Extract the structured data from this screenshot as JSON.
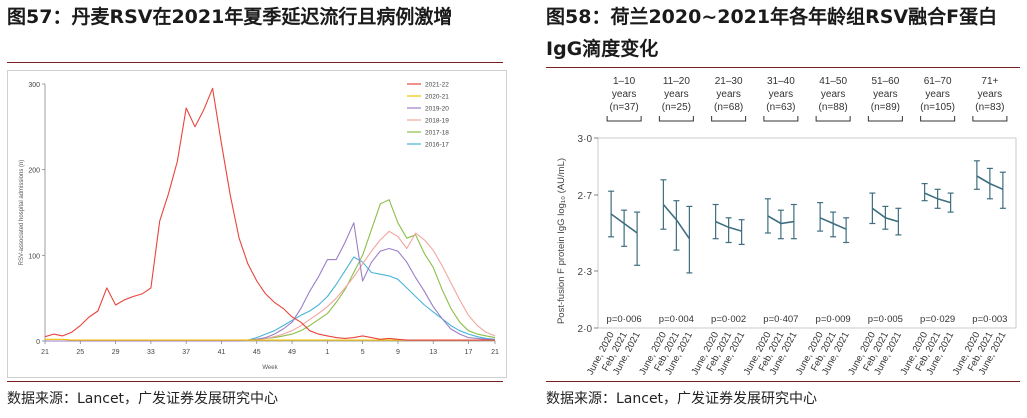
{
  "left_panel": {
    "title": "图57：丹麦RSV在2021年夏季延迟流行且病例激增",
    "source": "数据来源：Lancet，广发证券发展研究中心"
  },
  "right_panel": {
    "title_line1": "图58：荷兰2020~2021年各年龄组RSV融合F蛋白",
    "title_line2": "IgG滴度变化",
    "source": "数据来源：Lancet，广发证券发展研究中心"
  },
  "chart_data": [
    {
      "type": "line",
      "ylabel": "RSV-associated hospital admissions (n)",
      "xlabel": "Week",
      "x_ticks": [
        "21",
        "25",
        "29",
        "33",
        "37",
        "41",
        "45",
        "49",
        "1",
        "5",
        "9",
        "13",
        "17",
        "21"
      ],
      "ylim": [
        0,
        300
      ],
      "y_ticks": [
        0,
        100,
        200,
        300
      ],
      "legend_position": "top-right",
      "series": [
        {
          "name": "2021-22",
          "color": "#e8453c",
          "values": [
            5,
            8,
            6,
            10,
            18,
            28,
            35,
            62,
            42,
            48,
            52,
            55,
            62,
            140,
            172,
            210,
            272,
            250,
            270,
            295,
            230,
            170,
            120,
            90,
            70,
            55,
            45,
            38,
            28,
            22,
            12,
            8,
            6,
            4,
            3,
            4,
            6,
            4,
            2,
            3,
            2,
            1,
            1,
            1,
            1,
            1,
            1,
            1,
            1,
            1,
            1,
            1
          ]
        },
        {
          "name": "2020-21",
          "color": "#f2c100",
          "values": [
            2,
            2,
            2,
            1,
            1,
            1,
            1,
            1,
            1,
            1,
            1,
            1,
            1,
            1,
            1,
            1,
            1,
            1,
            1,
            1,
            1,
            1,
            1,
            1,
            1,
            1,
            1,
            1,
            1,
            1,
            1,
            1,
            1,
            1,
            1,
            1,
            1,
            1,
            1,
            1,
            1,
            1,
            1,
            1,
            1,
            1,
            1,
            1,
            1,
            1,
            1,
            1
          ]
        },
        {
          "name": "2019-20",
          "color": "#9b7fc8",
          "values": [
            0,
            0,
            0,
            0,
            0,
            0,
            0,
            0,
            0,
            0,
            0,
            0,
            0,
            0,
            0,
            0,
            0,
            0,
            0,
            0,
            0,
            0,
            0,
            1,
            2,
            4,
            8,
            14,
            22,
            38,
            58,
            75,
            95,
            95,
            115,
            138,
            70,
            92,
            105,
            108,
            105,
            92,
            74,
            58,
            40,
            26,
            14,
            8,
            4,
            3,
            2,
            1
          ]
        },
        {
          "name": "2018-19",
          "color": "#f2a6a0",
          "values": [
            0,
            0,
            0,
            0,
            0,
            0,
            0,
            0,
            0,
            0,
            0,
            0,
            0,
            0,
            0,
            0,
            0,
            0,
            0,
            0,
            0,
            0,
            0,
            1,
            2,
            3,
            5,
            8,
            12,
            18,
            25,
            32,
            40,
            50,
            62,
            75,
            90,
            105,
            118,
            128,
            122,
            108,
            126,
            118,
            106,
            88,
            68,
            48,
            30,
            18,
            10,
            6
          ]
        },
        {
          "name": "2017-18",
          "color": "#8cbf4a",
          "values": [
            0,
            0,
            0,
            0,
            0,
            0,
            0,
            0,
            0,
            0,
            0,
            0,
            0,
            0,
            0,
            0,
            0,
            0,
            0,
            0,
            0,
            0,
            0,
            1,
            2,
            3,
            4,
            6,
            8,
            12,
            18,
            25,
            32,
            45,
            60,
            80,
            100,
            130,
            160,
            165,
            138,
            120,
            124,
            102,
            86,
            60,
            38,
            22,
            12,
            8,
            6,
            4
          ]
        },
        {
          "name": "2016-17",
          "color": "#49b4d8",
          "values": [
            0,
            0,
            0,
            0,
            0,
            0,
            0,
            0,
            0,
            0,
            0,
            0,
            0,
            0,
            0,
            0,
            0,
            0,
            0,
            0,
            0,
            0,
            0,
            1,
            4,
            8,
            12,
            18,
            24,
            30,
            35,
            42,
            52,
            66,
            82,
            98,
            92,
            80,
            78,
            76,
            72,
            62,
            52,
            42,
            34,
            26,
            18,
            12,
            8,
            5,
            3,
            2
          ]
        }
      ]
    },
    {
      "type": "errorbar",
      "ylabel": "Post-fusion F protein IgG log₁₀ (AU/mL)",
      "ylim": [
        2.0,
        3.0
      ],
      "y_ticks": [
        "2·0",
        "2·3",
        "2·7",
        "3·0"
      ],
      "line_color": "#3f6f7f",
      "groups": [
        {
          "age": "1–10",
          "n": "(n=37)",
          "p": "p=0·006",
          "x_labels": [
            "June, 2020",
            "Feb, 2021",
            "June, 2021"
          ],
          "mean": [
            2.6,
            2.55,
            2.5
          ],
          "low": [
            2.48,
            2.43,
            2.33
          ],
          "high": [
            2.72,
            2.62,
            2.61
          ]
        },
        {
          "age": "11–20",
          "n": "(n=25)",
          "p": "p=0·004",
          "x_labels": [
            "June, 2020",
            "Feb, 2021",
            "June, 2021"
          ],
          "mean": [
            2.65,
            2.57,
            2.47
          ],
          "low": [
            2.52,
            2.41,
            2.29
          ],
          "high": [
            2.78,
            2.67,
            2.64
          ]
        },
        {
          "age": "21–30",
          "n": "(n=68)",
          "p": "p=0·002",
          "x_labels": [
            "June, 2020",
            "Feb, 2021",
            "June, 2021"
          ],
          "mean": [
            2.56,
            2.53,
            2.51
          ],
          "low": [
            2.47,
            2.45,
            2.44
          ],
          "high": [
            2.65,
            2.58,
            2.57
          ]
        },
        {
          "age": "31–40",
          "n": "(n=63)",
          "p": "p=0·407",
          "x_labels": [
            "June, 2020",
            "Feb, 2021",
            "June, 2021"
          ],
          "mean": [
            2.59,
            2.55,
            2.56
          ],
          "low": [
            2.5,
            2.47,
            2.47
          ],
          "high": [
            2.68,
            2.62,
            2.65
          ]
        },
        {
          "age": "41–50",
          "n": "(n=88)",
          "p": "p=0·009",
          "x_labels": [
            "June, 2020",
            "Feb, 2021",
            "June, 2021"
          ],
          "mean": [
            2.58,
            2.55,
            2.52
          ],
          "low": [
            2.51,
            2.48,
            2.45
          ],
          "high": [
            2.66,
            2.61,
            2.58
          ]
        },
        {
          "age": "51–60",
          "n": "(n=89)",
          "p": "p=0·005",
          "x_labels": [
            "June, 2020",
            "Feb, 2021",
            "June, 2021"
          ],
          "mean": [
            2.63,
            2.58,
            2.56
          ],
          "low": [
            2.55,
            2.52,
            2.49
          ],
          "high": [
            2.71,
            2.64,
            2.63
          ]
        },
        {
          "age": "61–70",
          "n": "(n=105)",
          "p": "p=0·029",
          "x_labels": [
            "June, 2020",
            "Feb, 2021",
            "June, 2021"
          ],
          "mean": [
            2.71,
            2.68,
            2.66
          ],
          "low": [
            2.67,
            2.63,
            2.61
          ],
          "high": [
            2.76,
            2.73,
            2.71
          ]
        },
        {
          "age": "71+",
          "n": "(n=83)",
          "p": "p=0·003",
          "x_labels": [
            "June, 2020",
            "Feb, 2021",
            "June, 2021"
          ],
          "mean": [
            2.8,
            2.76,
            2.73
          ],
          "low": [
            2.73,
            2.68,
            2.63
          ],
          "high": [
            2.88,
            2.84,
            2.82
          ]
        }
      ],
      "years_label": "years"
    }
  ]
}
